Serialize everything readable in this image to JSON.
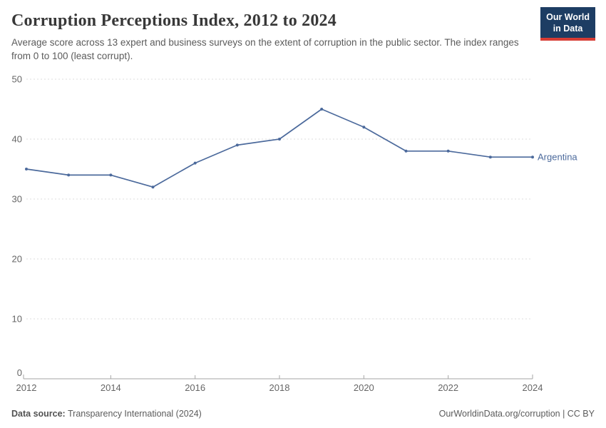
{
  "header": {
    "title": "Corruption Perceptions Index, 2012 to 2024",
    "subtitle": "Average score across 13 expert and business surveys on the extent of corruption in the public sector. The index ranges from 0 to 100 (least corrupt).",
    "logo": {
      "line1": "Our World",
      "line2": "in Data"
    }
  },
  "chart_data": {
    "type": "line",
    "title": "Corruption Perceptions Index, 2012 to 2024",
    "xlabel": "",
    "ylabel": "",
    "xlim": [
      2012,
      2024
    ],
    "ylim": [
      0,
      50
    ],
    "x_ticks": [
      2012,
      2014,
      2016,
      2018,
      2020,
      2022,
      2024
    ],
    "y_ticks": [
      0,
      10,
      20,
      30,
      40,
      50
    ],
    "grid": "horizontal-dashed",
    "legend_position": "line-end-label",
    "series": [
      {
        "name": "Argentina",
        "color": "#4c6a9c",
        "x": [
          2012,
          2013,
          2014,
          2015,
          2016,
          2017,
          2018,
          2019,
          2020,
          2021,
          2022,
          2023,
          2024
        ],
        "values": [
          35,
          34,
          34,
          32,
          36,
          39,
          40,
          45,
          42,
          38,
          38,
          37,
          37
        ]
      }
    ]
  },
  "footer": {
    "data_source_label": "Data source:",
    "data_source_value": "Transparency International (2024)",
    "attribution": "OurWorldinData.org/corruption | CC BY"
  },
  "colors": {
    "navy": "#1d3d63",
    "logo_red": "#d73c34",
    "line_blue": "#4c6a9c",
    "grid": "#dddddd",
    "axis": "#a5a5a5",
    "tick_text": "#666666"
  }
}
